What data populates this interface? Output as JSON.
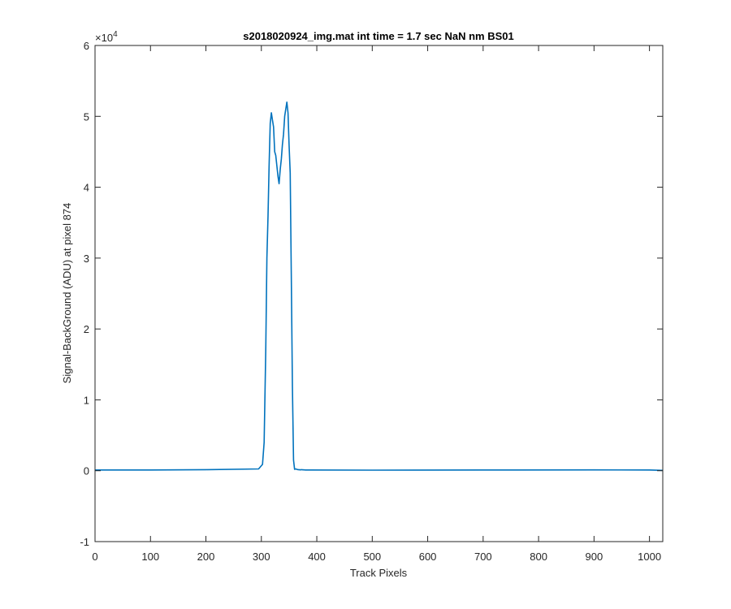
{
  "chart_data": {
    "type": "line",
    "title": "s2018020924_img.mat int time = 1.7 sec  NaN nm BS01",
    "xlabel": "Track Pixels",
    "ylabel": "Signal-BackGround (ADU) at pixel 874",
    "xlim": [
      0,
      1024
    ],
    "ylim": [
      -10000,
      60000
    ],
    "x_ticks": [
      0,
      100,
      200,
      300,
      400,
      500,
      600,
      700,
      800,
      900,
      1000
    ],
    "y_ticks": [
      -10000,
      0,
      10000,
      20000,
      30000,
      40000,
      50000,
      60000
    ],
    "y_tick_labels": [
      "-1",
      "0",
      "1",
      "2",
      "3",
      "4",
      "5",
      "6"
    ],
    "y_exponent": {
      "base": "×10",
      "power": "4"
    },
    "grid": false,
    "series": [
      {
        "color": "#0072BD",
        "x": [
          0,
          100,
          200,
          295,
          302,
          305,
          308,
          310,
          312,
          314,
          316,
          318,
          320,
          322,
          324,
          326,
          328,
          330,
          332,
          334,
          336,
          338,
          340,
          342,
          344,
          346,
          348,
          350,
          352,
          354,
          356,
          358,
          360,
          362,
          364,
          366,
          368,
          370,
          372,
          380,
          500,
          700,
          900,
          1000,
          1024
        ],
        "y": [
          100,
          100,
          150,
          250,
          900,
          4000,
          17000,
          30000,
          36000,
          43000,
          49000,
          50500,
          49500,
          48500,
          45000,
          44500,
          43000,
          41500,
          40500,
          42500,
          44000,
          46000,
          47500,
          50000,
          51000,
          52000,
          50500,
          46000,
          42000,
          28000,
          12000,
          1500,
          200,
          250,
          200,
          150,
          150,
          120,
          150,
          100,
          80,
          100,
          120,
          100,
          50
        ]
      }
    ]
  }
}
